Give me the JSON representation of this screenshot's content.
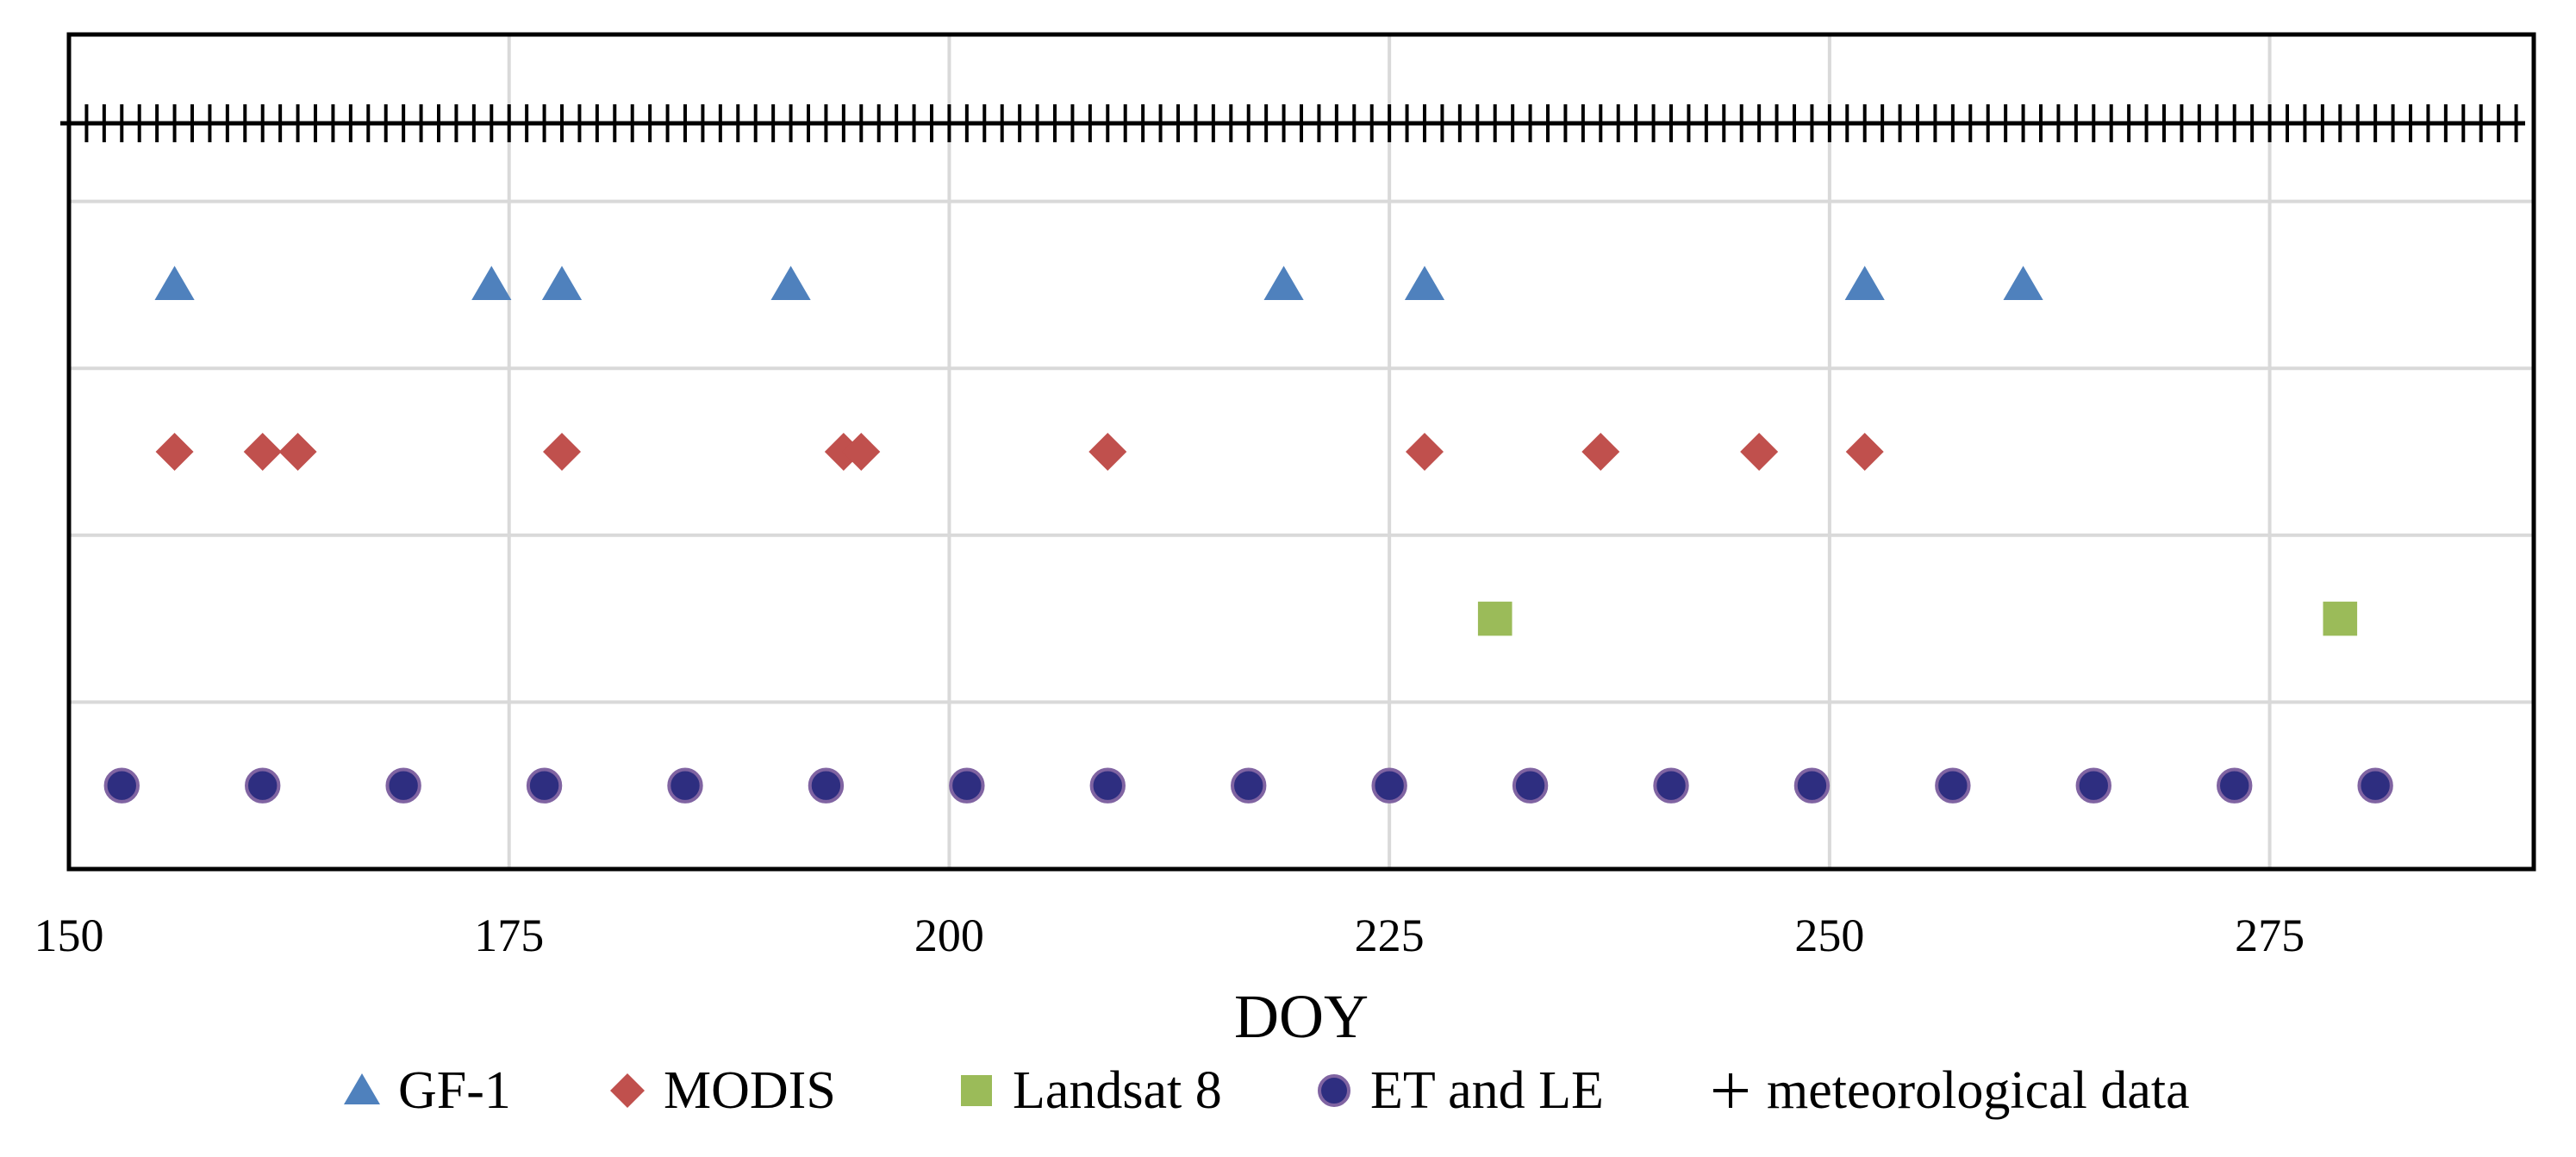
{
  "chart_data": {
    "type": "scatter",
    "title": "",
    "xlabel": "DOY",
    "ylabel": "",
    "xlim": [
      150,
      290
    ],
    "xticks": [
      150,
      175,
      200,
      225,
      250,
      275
    ],
    "rows": 5,
    "grid": true,
    "colors": {
      "GF-1": "#4F81BD",
      "MODIS": "#C0504D",
      "Landsat 8": "#9BBB59",
      "ET and LE": "#2E2E80",
      "meteorological data": "#000000"
    },
    "series": [
      {
        "name": "meteorological data",
        "legend": "meteorological data",
        "marker": "plus",
        "row": 0,
        "range": [
          150,
          289
        ],
        "step": 1
      },
      {
        "name": "GF-1",
        "legend": "GF-1",
        "marker": "triangle",
        "row": 1,
        "values": [
          156,
          174,
          178,
          191,
          219,
          227,
          252,
          261
        ]
      },
      {
        "name": "MODIS",
        "legend": "MODIS",
        "marker": "diamond",
        "row": 2,
        "values": [
          156,
          161,
          163,
          178,
          194,
          195,
          209,
          227,
          237,
          246,
          252
        ]
      },
      {
        "name": "Landsat 8",
        "legend": "Landsat 8",
        "marker": "square",
        "row": 3,
        "values": [
          231,
          279
        ]
      },
      {
        "name": "ET and LE",
        "legend": "ET and LE",
        "marker": "circle",
        "row": 4,
        "values": [
          153,
          161,
          169,
          177,
          185,
          193,
          201,
          209,
          217,
          225,
          233,
          241,
          249,
          257,
          265,
          273,
          281
        ]
      }
    ],
    "legend_order": [
      "GF-1",
      "MODIS",
      "Landsat 8",
      "ET and LE",
      "meteorological data"
    ],
    "legend_position": "bottom"
  }
}
